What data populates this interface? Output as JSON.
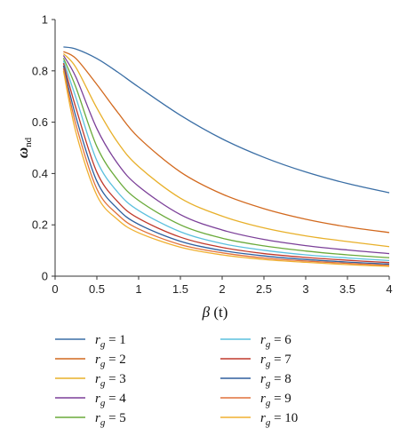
{
  "chart_data": {
    "type": "line",
    "xlabel": "β (t)",
    "ylabel": "ω_nd",
    "xlim": [
      0,
      4
    ],
    "ylim": [
      0,
      1
    ],
    "xticks": [
      0,
      0.5,
      1,
      1.5,
      2,
      2.5,
      3,
      3.5,
      4
    ],
    "xtick_labels": [
      "0",
      "0.5",
      "1",
      "1.5",
      "2",
      "2.5",
      "3",
      "3.5",
      "4"
    ],
    "yticks": [
      0,
      0.2,
      0.4,
      0.6,
      0.8,
      1
    ],
    "ytick_labels": [
      "0",
      "0.2",
      "0.4",
      "0.6",
      "0.8",
      "1"
    ],
    "grid": false,
    "legend_position": "bottom",
    "x": [
      0.1,
      0.25,
      0.5,
      0.75,
      1,
      1.5,
      2,
      2.5,
      3,
      3.5,
      4
    ],
    "series": [
      {
        "name": "r_g = 1",
        "color": "#3a6ea5",
        "values": [
          0.893,
          0.885,
          0.848,
          0.795,
          0.737,
          0.627,
          0.535,
          0.463,
          0.406,
          0.361,
          0.325
        ]
      },
      {
        "name": "r_g = 2",
        "color": "#d2691e",
        "values": [
          0.875,
          0.848,
          0.747,
          0.638,
          0.54,
          0.406,
          0.32,
          0.263,
          0.222,
          0.192,
          0.17
        ]
      },
      {
        "name": "r_g = 3",
        "color": "#e8b02a",
        "values": [
          0.867,
          0.813,
          0.655,
          0.521,
          0.427,
          0.304,
          0.234,
          0.188,
          0.157,
          0.135,
          0.115
        ]
      },
      {
        "name": "r_g = 4",
        "color": "#7b3f98",
        "values": [
          0.86,
          0.775,
          0.575,
          0.438,
          0.35,
          0.24,
          0.18,
          0.143,
          0.119,
          0.102,
          0.088
        ]
      },
      {
        "name": "r_g = 5",
        "color": "#6aaa3a",
        "values": [
          0.85,
          0.735,
          0.505,
          0.375,
          0.295,
          0.2,
          0.148,
          0.118,
          0.098,
          0.083,
          0.072
        ]
      },
      {
        "name": "r_g = 6",
        "color": "#5bc0de",
        "values": [
          0.84,
          0.695,
          0.45,
          0.327,
          0.256,
          0.173,
          0.127,
          0.101,
          0.083,
          0.071,
          0.061
        ]
      },
      {
        "name": "r_g = 7",
        "color": "#c0392b",
        "values": [
          0.83,
          0.655,
          0.405,
          0.29,
          0.225,
          0.152,
          0.112,
          0.088,
          0.073,
          0.062,
          0.053
        ]
      },
      {
        "name": "r_g = 8",
        "color": "#2e5f9e",
        "values": [
          0.82,
          0.62,
          0.37,
          0.262,
          0.202,
          0.136,
          0.1,
          0.079,
          0.065,
          0.055,
          0.047
        ]
      },
      {
        "name": "r_g = 9",
        "color": "#e0703a",
        "values": [
          0.81,
          0.59,
          0.34,
          0.24,
          0.184,
          0.123,
          0.091,
          0.071,
          0.059,
          0.05,
          0.042
        ]
      },
      {
        "name": "r_g = 10",
        "color": "#f0b030",
        "values": [
          0.8,
          0.56,
          0.315,
          0.22,
          0.169,
          0.113,
          0.083,
          0.065,
          0.054,
          0.045,
          0.038
        ]
      }
    ],
    "legend": [
      {
        "sym": "r",
        "sub": "g",
        "rest": " = 1"
      },
      {
        "sym": "r",
        "sub": "g",
        "rest": " = 2"
      },
      {
        "sym": "r",
        "sub": "g",
        "rest": " = 3"
      },
      {
        "sym": "r",
        "sub": "g",
        "rest": " = 4"
      },
      {
        "sym": "r",
        "sub": "g",
        "rest": " = 5"
      },
      {
        "sym": "r",
        "sub": "g",
        "rest": " = 6"
      },
      {
        "sym": "r",
        "sub": "g",
        "rest": " = 7"
      },
      {
        "sym": "r",
        "sub": "g",
        "rest": " = 8"
      },
      {
        "sym": "r",
        "sub": "g",
        "rest": " = 9"
      },
      {
        "sym": "r",
        "sub": "g",
        "rest": " = 10"
      }
    ],
    "xlabel_parts": {
      "sym": "β",
      "rest": " (t)"
    },
    "ylabel_parts": {
      "sym": "ω",
      "sub": "nd"
    }
  }
}
